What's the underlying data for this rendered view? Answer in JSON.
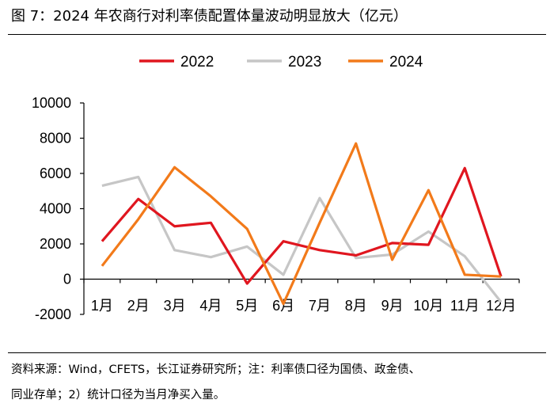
{
  "figure": {
    "title": "图 7：2024 年农商行对利率债配置体量波动明显放大（亿元）",
    "source_line1": "资料来源：Wind，CFETS，长江证券研究所；注：利率债口径为国债、政金债、",
    "source_line2": "同业存单；2）统计口径为当月净买入量。"
  },
  "colors": {
    "2022": "#e0161f",
    "2023": "#c6c6c6",
    "2024": "#f27a1a"
  },
  "chart_data": {
    "type": "line",
    "title": "2024 年农商行对利率债配置体量波动明显放大（亿元）",
    "xlabel": "",
    "ylabel": "",
    "categories": [
      "1月",
      "2月",
      "3月",
      "4月",
      "5月",
      "6月",
      "7月",
      "8月",
      "9月",
      "10月",
      "11月",
      "12月"
    ],
    "ylim": [
      -2000,
      10000
    ],
    "yticks": [
      -2000,
      0,
      2000,
      4000,
      6000,
      8000,
      10000
    ],
    "ytick_labels": [
      "-2000",
      "0",
      "2000",
      "4000",
      "6000",
      "8000",
      "10000"
    ],
    "legend_position": "top",
    "series": [
      {
        "name": "2022",
        "values": [
          2150,
          4550,
          3000,
          3200,
          -250,
          2150,
          1650,
          1350,
          2050,
          1950,
          6300,
          150
        ]
      },
      {
        "name": "2023",
        "values": [
          5300,
          5800,
          1650,
          1250,
          1850,
          250,
          4600,
          1200,
          1400,
          2700,
          1300,
          -1300
        ]
      },
      {
        "name": "2024",
        "values": [
          750,
          3400,
          6350,
          4700,
          2850,
          -1400,
          3200,
          7700,
          1100,
          5050,
          250,
          150
        ]
      }
    ]
  }
}
